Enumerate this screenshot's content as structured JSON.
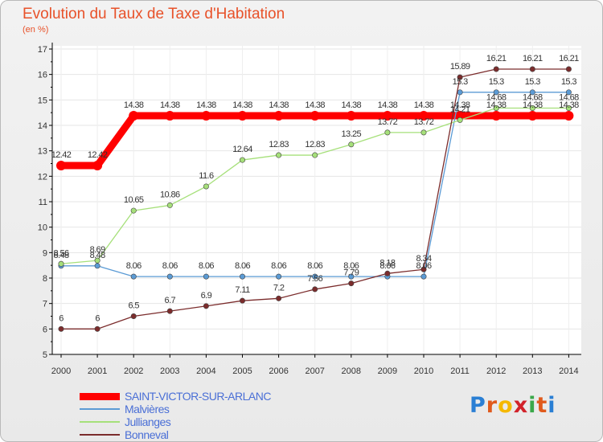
{
  "title": "Evolution du Taux de Taxe d'Habitation",
  "subtitle": "(en %)",
  "logo": {
    "letters": [
      "P",
      "r",
      "o",
      "x",
      "i",
      "t",
      "i"
    ],
    "colors": [
      "#2a7fd4",
      "#e05a1c",
      "#f5b800",
      "#d2222a",
      "#3aa84a",
      "#e05a1c",
      "#2a7fd4"
    ]
  },
  "chart_data": {
    "type": "line",
    "x": [
      "2000",
      "2001",
      "2002",
      "2003",
      "2004",
      "2005",
      "2006",
      "2007",
      "2008",
      "2009",
      "2010",
      "2011",
      "2012",
      "2013",
      "2014"
    ],
    "ylim": [
      5,
      17
    ],
    "yticks": [
      5,
      6,
      7,
      8,
      9,
      10,
      11,
      12,
      13,
      14,
      15,
      16,
      17
    ],
    "legend_position": "bottom-left",
    "series": [
      {
        "name": "SAINT-VICTOR-SUR-ARLANC",
        "color": "#ff0000",
        "labelColor": "#4a6fd6",
        "values": [
          12.42,
          12.42,
          14.38,
          14.38,
          14.38,
          14.38,
          14.38,
          14.38,
          14.38,
          14.38,
          14.38,
          14.38,
          14.38,
          14.38,
          14.38
        ],
        "labels": [
          "12.42",
          "12.42",
          "14.38",
          "14.38",
          "14.38",
          "14.38",
          "14.38",
          "14.38",
          "14.38",
          "14.38",
          "14.38",
          "14.38",
          "14.38",
          "14.38",
          "14.38"
        ]
      },
      {
        "name": "Malvières",
        "color": "#5b9bd5",
        "labelColor": "#4a6fd6",
        "values": [
          8.48,
          8.48,
          8.06,
          8.06,
          8.06,
          8.06,
          8.06,
          8.06,
          8.06,
          8.06,
          8.06,
          15.3,
          15.3,
          15.3,
          15.3
        ],
        "labels": [
          "8.48",
          "8.48",
          "8.06",
          "8.06",
          "8.06",
          "8.06",
          "8.06",
          "8.06",
          "8.06",
          "8.06",
          "8.06",
          "15.3",
          "15.3",
          "15.3",
          "15.3"
        ]
      },
      {
        "name": "Jullianges",
        "color": "#a6e07a",
        "labelColor": "#4a6fd6",
        "values": [
          8.56,
          8.69,
          10.65,
          10.86,
          11.6,
          12.64,
          12.83,
          12.83,
          13.25,
          13.72,
          13.72,
          14.21,
          14.68,
          14.68,
          14.68
        ],
        "labels": [
          "8.56",
          "8.69",
          "10.65",
          "10.86",
          "11.6",
          "12.64",
          "12.83",
          "12.83",
          "13.25",
          "13.72",
          "13.72",
          "14.21",
          "14.68",
          "14.68",
          "14.68"
        ]
      },
      {
        "name": "Bonneval",
        "color": "#7b2c2c",
        "labelColor": "#4a6fd6",
        "values": [
          6,
          6,
          6.5,
          6.7,
          6.9,
          7.11,
          7.2,
          7.56,
          7.79,
          8.18,
          8.34,
          15.89,
          16.21,
          16.21,
          16.21
        ],
        "labels": [
          "6",
          "6",
          "6.5",
          "6.7",
          "6.9",
          "7.11",
          "7.2",
          "7.56",
          "7.79",
          "8.18",
          "8.34",
          "15.89",
          "16.21",
          "16.21",
          "16.21"
        ]
      }
    ]
  }
}
